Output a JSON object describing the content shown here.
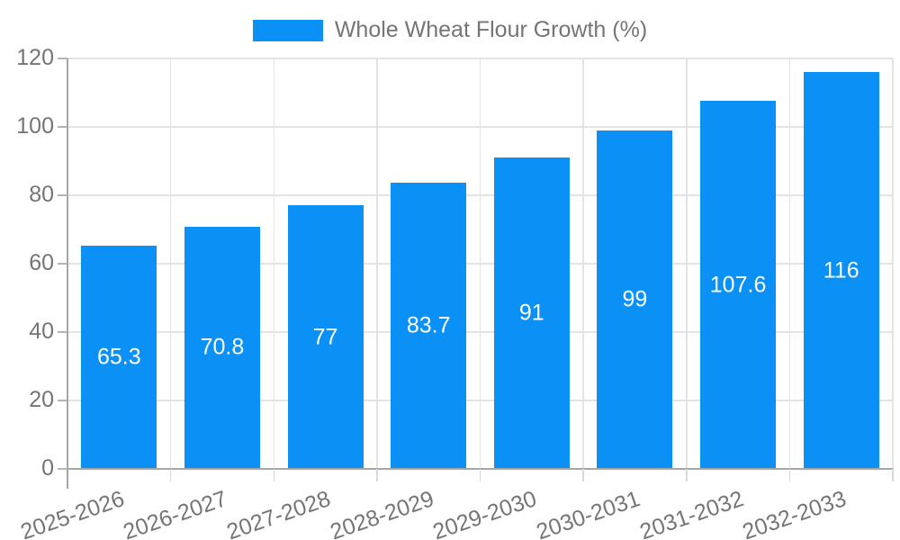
{
  "legend": {
    "label": "Whole Wheat Flour Growth (%)"
  },
  "chart_data": {
    "type": "bar",
    "title": "",
    "categories": [
      "2025-2026",
      "2026-2027",
      "2027-2028",
      "2028-2029",
      "2029-2030",
      "2030-2031",
      "2031-2032",
      "2032-2033"
    ],
    "series": [
      {
        "name": "Whole Wheat Flour Growth (%)",
        "values": [
          65.3,
          70.8,
          77,
          83.7,
          91,
          99,
          107.6,
          116
        ]
      }
    ],
    "xlabel": "",
    "ylabel": "",
    "ylim": [
      0,
      120
    ],
    "yticks": [
      0,
      20,
      40,
      60,
      80,
      100,
      120
    ],
    "grid": true,
    "legend_position": "top",
    "value_labels_inside_bars": true,
    "colors": {
      "bar": "#0b90f5",
      "grid": "#e3e3e3",
      "axis": "#a6a6a6",
      "tick_text": "#757575",
      "value_label_text": "#ffffff",
      "background": "#ffffff"
    }
  }
}
